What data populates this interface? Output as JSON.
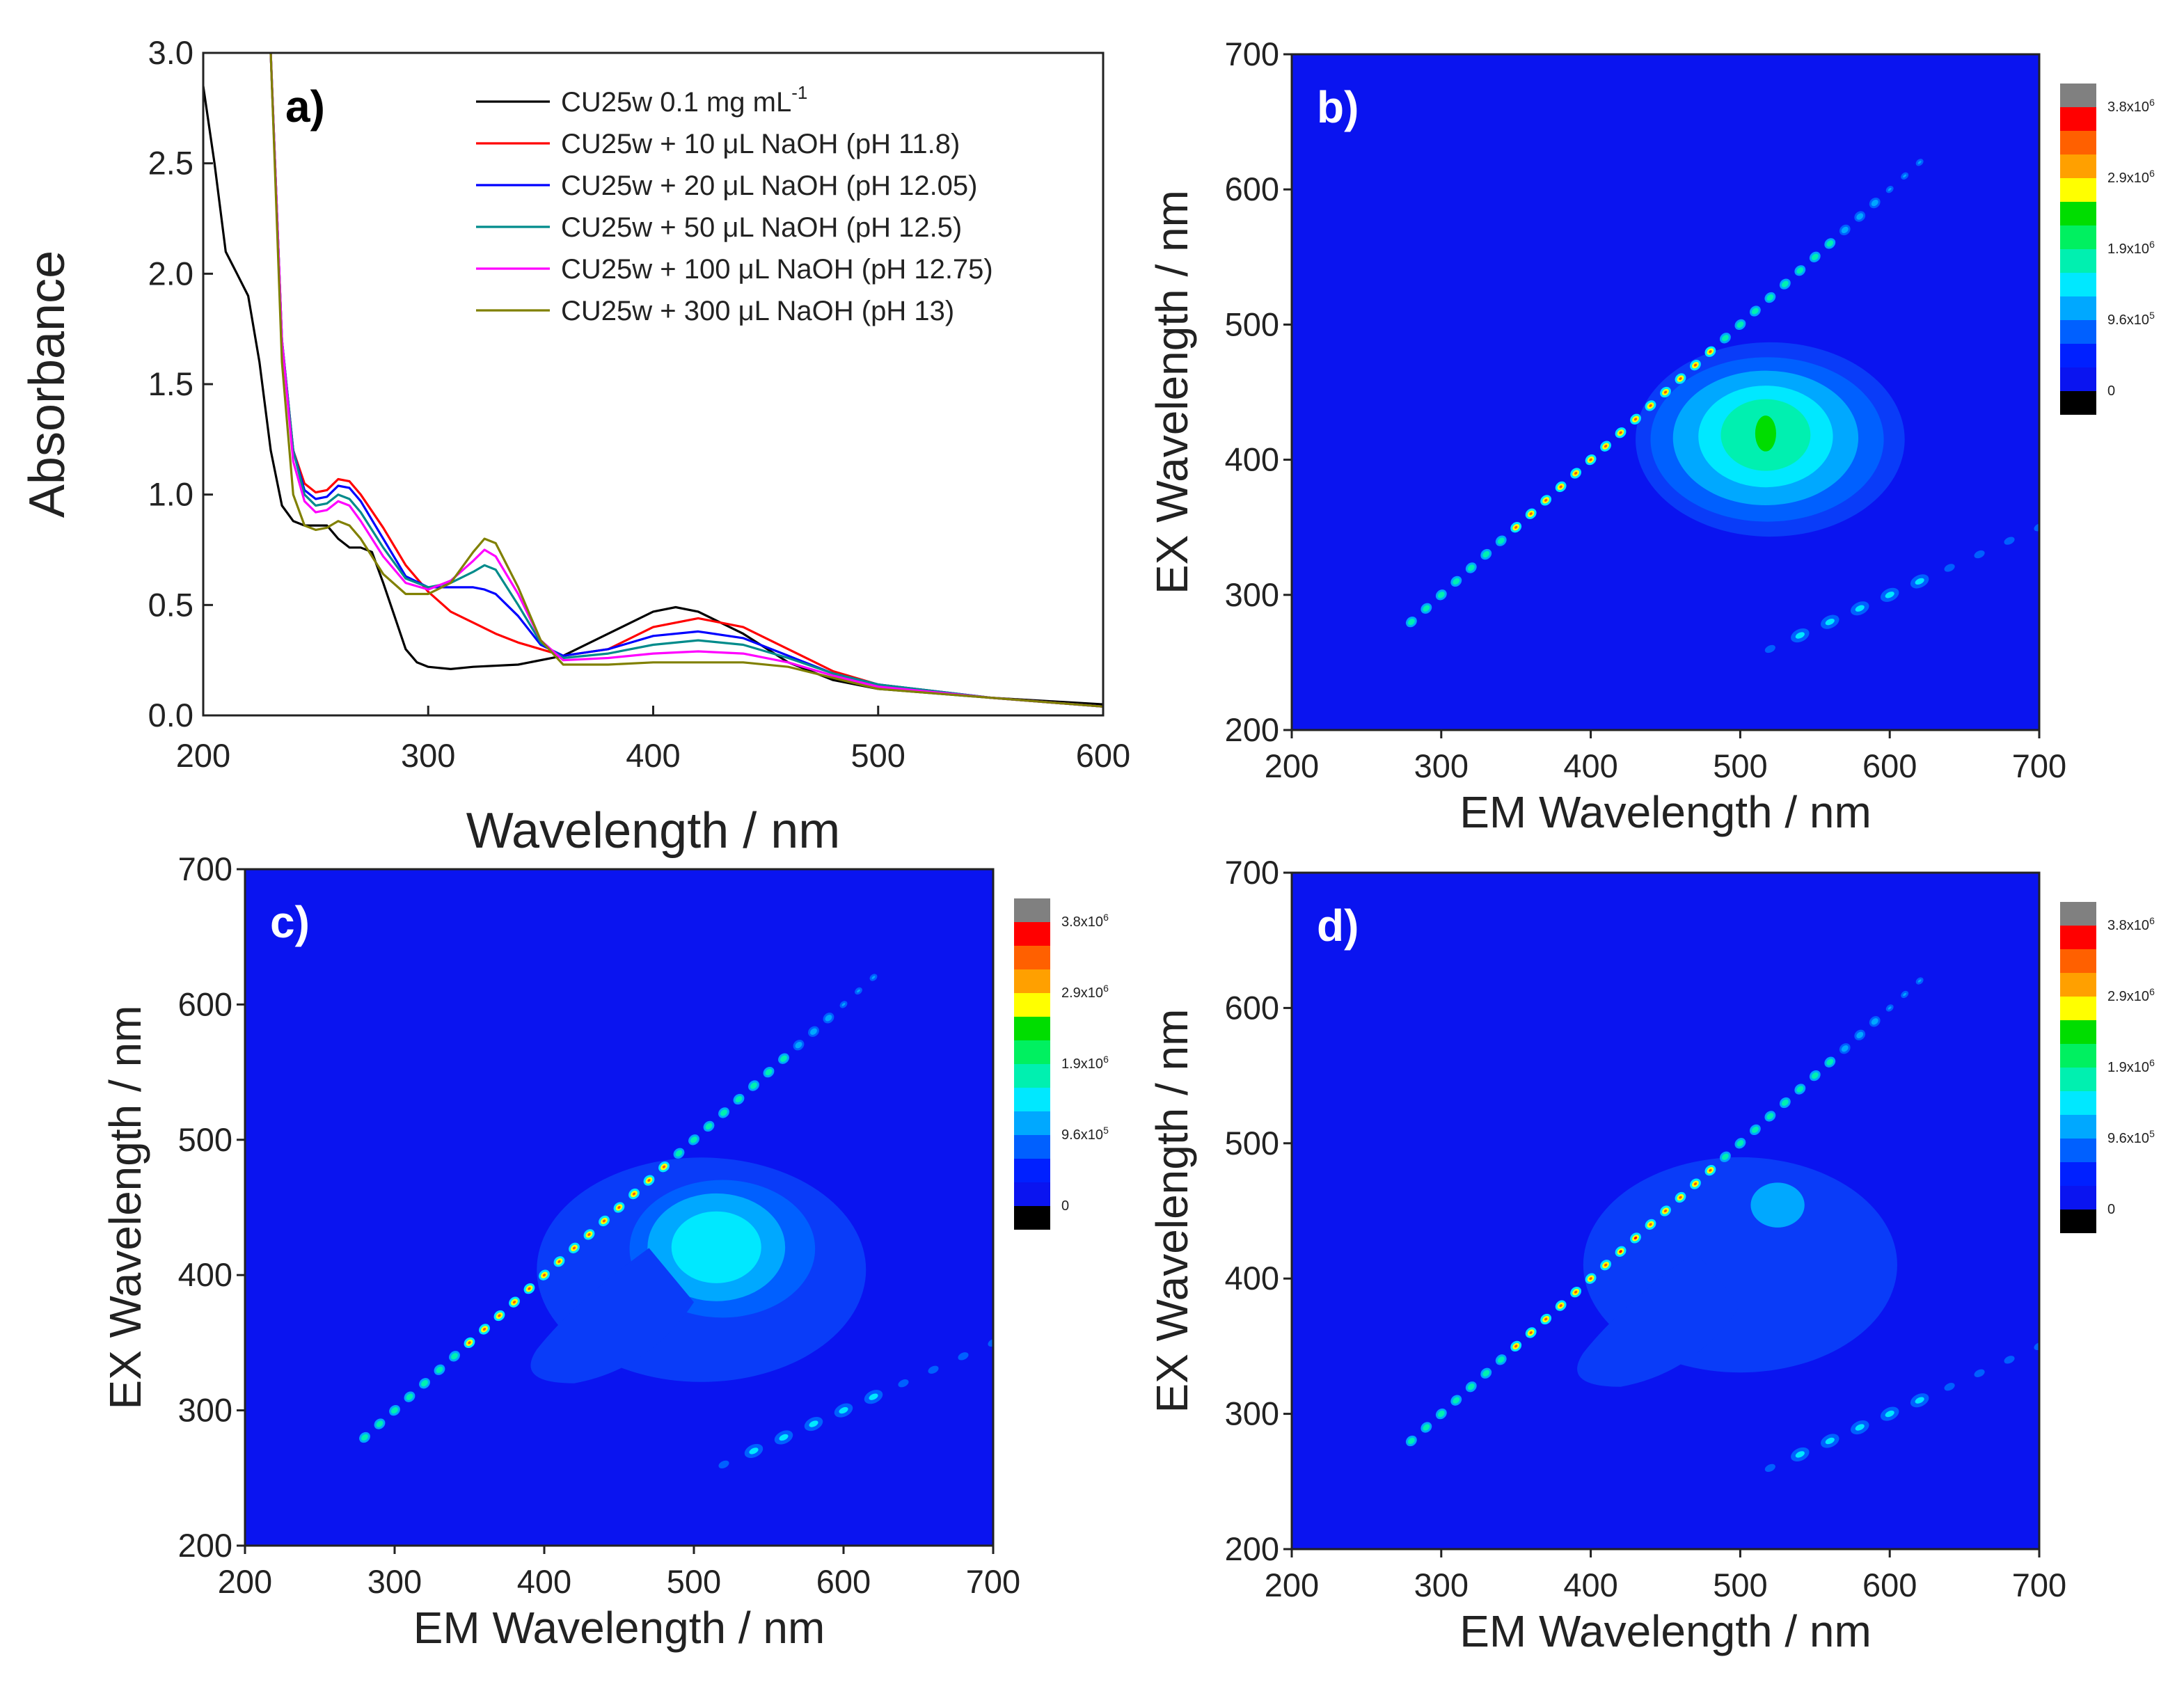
{
  "chart_data": [
    {
      "type": "line",
      "panel_label": "a)",
      "xlabel": "Wavelength / nm",
      "ylabel": "Absorbance",
      "xlim": [
        200,
        600
      ],
      "ylim": [
        0.0,
        3.0
      ],
      "xticks": [
        "200",
        "300",
        "400",
        "500",
        "600"
      ],
      "yticks": [
        "0.0",
        "0.5",
        "1.0",
        "1.5",
        "2.0",
        "2.5",
        "3.0"
      ],
      "legend_position": "top-right",
      "series": [
        {
          "name": "CU25w 0.1 mg mL",
          "name_sup": "-1",
          "color": "#000000",
          "x": [
            200,
            205,
            210,
            215,
            220,
            225,
            230,
            235,
            240,
            245,
            250,
            255,
            260,
            265,
            270,
            275,
            280,
            285,
            290,
            295,
            300,
            310,
            320,
            340,
            360,
            380,
            400,
            410,
            420,
            440,
            460,
            480,
            500,
            550,
            600
          ],
          "y": [
            2.85,
            2.5,
            2.1,
            2.0,
            1.9,
            1.6,
            1.2,
            0.95,
            0.88,
            0.86,
            0.86,
            0.86,
            0.8,
            0.76,
            0.76,
            0.74,
            0.6,
            0.45,
            0.3,
            0.24,
            0.22,
            0.21,
            0.22,
            0.23,
            0.27,
            0.37,
            0.47,
            0.49,
            0.47,
            0.37,
            0.24,
            0.16,
            0.12,
            0.08,
            0.05
          ]
        },
        {
          "name": "CU25w + 10 μL NaOH (pH 11.8)",
          "color": "#ff0000",
          "x": [
            230,
            235,
            240,
            245,
            250,
            255,
            260,
            265,
            270,
            280,
            290,
            300,
            310,
            320,
            330,
            340,
            350,
            360,
            380,
            400,
            420,
            440,
            460,
            480,
            500,
            550,
            600
          ],
          "y": [
            3.0,
            1.7,
            1.2,
            1.05,
            1.01,
            1.02,
            1.07,
            1.06,
            1.0,
            0.85,
            0.68,
            0.56,
            0.47,
            0.42,
            0.37,
            0.33,
            0.3,
            0.27,
            0.3,
            0.4,
            0.44,
            0.4,
            0.3,
            0.2,
            0.14,
            0.08,
            0.04
          ]
        },
        {
          "name": "CU25w + 20 μL NaOH (pH 12.05)",
          "color": "#0000ff",
          "x": [
            230,
            235,
            240,
            245,
            250,
            255,
            260,
            265,
            270,
            280,
            290,
            300,
            310,
            320,
            325,
            330,
            340,
            350,
            360,
            380,
            400,
            420,
            440,
            460,
            480,
            500,
            550,
            600
          ],
          "y": [
            3.0,
            1.7,
            1.2,
            1.02,
            0.98,
            0.99,
            1.04,
            1.03,
            0.97,
            0.8,
            0.63,
            0.58,
            0.58,
            0.58,
            0.57,
            0.55,
            0.45,
            0.32,
            0.27,
            0.3,
            0.36,
            0.38,
            0.35,
            0.27,
            0.19,
            0.14,
            0.08,
            0.04
          ]
        },
        {
          "name": "CU25w + 50 μL NaOH (pH 12.5)",
          "color": "#008b8b",
          "x": [
            230,
            235,
            240,
            245,
            250,
            255,
            260,
            265,
            270,
            280,
            290,
            300,
            310,
            320,
            325,
            330,
            340,
            350,
            360,
            380,
            400,
            420,
            440,
            460,
            480,
            500,
            550,
            600
          ],
          "y": [
            3.0,
            1.7,
            1.2,
            1.0,
            0.95,
            0.96,
            1.0,
            0.98,
            0.92,
            0.76,
            0.62,
            0.58,
            0.6,
            0.65,
            0.68,
            0.66,
            0.5,
            0.33,
            0.26,
            0.28,
            0.32,
            0.34,
            0.32,
            0.26,
            0.19,
            0.14,
            0.08,
            0.04
          ]
        },
        {
          "name": "CU25w + 100 μL NaOH (pH 12.75)",
          "color": "#ff00ff",
          "x": [
            230,
            235,
            240,
            245,
            250,
            255,
            260,
            265,
            270,
            280,
            290,
            300,
            310,
            320,
            325,
            330,
            340,
            350,
            360,
            380,
            400,
            420,
            440,
            460,
            480,
            500,
            550,
            600
          ],
          "y": [
            3.0,
            1.7,
            1.15,
            0.97,
            0.92,
            0.93,
            0.97,
            0.95,
            0.88,
            0.72,
            0.6,
            0.57,
            0.61,
            0.7,
            0.75,
            0.72,
            0.55,
            0.34,
            0.25,
            0.26,
            0.28,
            0.29,
            0.28,
            0.24,
            0.18,
            0.13,
            0.08,
            0.04
          ]
        },
        {
          "name": "CU25w + 300 μL NaOH (pH 13)",
          "color": "#808000",
          "x": [
            230,
            235,
            240,
            245,
            250,
            255,
            260,
            265,
            270,
            280,
            290,
            300,
            310,
            320,
            325,
            330,
            340,
            350,
            360,
            380,
            400,
            420,
            440,
            460,
            480,
            500,
            550,
            600
          ],
          "y": [
            3.0,
            1.6,
            1.0,
            0.86,
            0.84,
            0.85,
            0.88,
            0.86,
            0.8,
            0.64,
            0.55,
            0.55,
            0.6,
            0.74,
            0.8,
            0.78,
            0.58,
            0.34,
            0.23,
            0.23,
            0.24,
            0.24,
            0.24,
            0.22,
            0.17,
            0.12,
            0.08,
            0.04
          ]
        }
      ]
    },
    {
      "type": "heatmap",
      "panel_label": "b)",
      "xlabel": "EM Wavelength / nm",
      "ylabel": "EX Wavelength / nm",
      "xlim": [
        200,
        700
      ],
      "ylim": [
        200,
        700
      ],
      "xticks": [
        "200",
        "300",
        "400",
        "500",
        "600",
        "700"
      ],
      "yticks": [
        "200",
        "300",
        "400",
        "500",
        "600",
        "700"
      ],
      "emission_peak": {
        "em": 520,
        "ex": 415
      },
      "colorbar_labels": [
        "3.8x10",
        "2.9x10",
        "1.9x10",
        "9.6x10",
        "0"
      ],
      "colorbar_exponents": [
        "6",
        "6",
        "6",
        "5",
        ""
      ]
    },
    {
      "type": "heatmap",
      "panel_label": "c)",
      "xlabel": "EM Wavelength / nm",
      "ylabel": "EX Wavelength / nm",
      "xlim": [
        200,
        700
      ],
      "ylim": [
        200,
        700
      ],
      "xticks": [
        "200",
        "300",
        "400",
        "500",
        "600",
        "700"
      ],
      "yticks": [
        "200",
        "300",
        "400",
        "500",
        "600",
        "700"
      ],
      "emission_peak": {
        "em": 515,
        "ex": 415
      },
      "colorbar_labels": [
        "3.8x10",
        "2.9x10",
        "1.9x10",
        "9.6x10",
        "0"
      ],
      "colorbar_exponents": [
        "6",
        "6",
        "6",
        "5",
        ""
      ]
    },
    {
      "type": "heatmap",
      "panel_label": "d)",
      "xlabel": "EM Wavelength / nm",
      "ylabel": "EX Wavelength / nm",
      "xlim": [
        200,
        700
      ],
      "ylim": [
        200,
        700
      ],
      "xticks": [
        "200",
        "300",
        "400",
        "500",
        "600",
        "700"
      ],
      "yticks": [
        "200",
        "300",
        "400",
        "500",
        "600",
        "700"
      ],
      "emission_peak": {
        "em": 515,
        "ex": 430
      },
      "colorbar_labels": [
        "3.8x10",
        "2.9x10",
        "1.9x10",
        "9.6x10",
        "0"
      ],
      "colorbar_exponents": [
        "6",
        "6",
        "6",
        "5",
        ""
      ]
    }
  ],
  "colors": {
    "heatmap_background": "#0a14f0",
    "colorbar": [
      "#808080",
      "#ff0000",
      "#ff6000",
      "#ffa000",
      "#ffff00",
      "#00dd00",
      "#00f060",
      "#00f0b0",
      "#00e8ff",
      "#00a8ff",
      "#0060ff",
      "#0020ff",
      "#0a14f0",
      "#000000"
    ]
  }
}
